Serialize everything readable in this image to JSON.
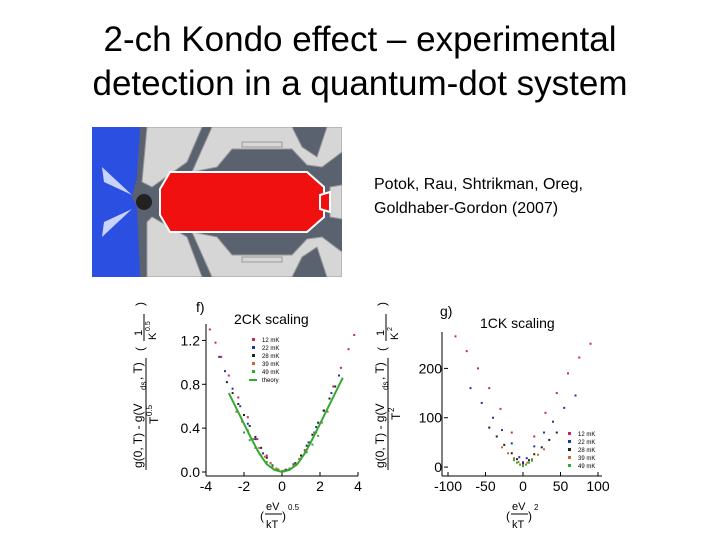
{
  "slide": {
    "title_line1": "2-ch Kondo effect – experimental",
    "title_line2": "detection in a quantum-dot system",
    "citation_line1": "Potok, Rau, Shtrikman, Oreg,",
    "citation_line2": "Goldhaber-Gordon (2007)"
  },
  "colors": {
    "blue_lead": "#2b4fe0",
    "red_island": "#f01010",
    "gate_grey": "#d6d6d6",
    "substrate": "#5a6270"
  },
  "chart_data": [
    {
      "type": "scatter",
      "panel_letter": "f)",
      "title": "2CK scaling",
      "xlabel": "(eV/kT)^0.5",
      "ylabel": "(g(0,T) - g(Vds,T)) / T^0.5  (1/K^0.5)",
      "xlim": [
        -4,
        4
      ],
      "ylim": [
        0,
        1.35
      ],
      "x_ticks": [
        "-4",
        "-2",
        "0",
        "2",
        "4"
      ],
      "y_ticks": [
        "0.0",
        "0.4",
        "0.8",
        "1.2"
      ],
      "legend": [
        "12 mK",
        "22 mK",
        "28 mK",
        "39 mK",
        "49 mK",
        "theory"
      ],
      "legend_position": "top-left",
      "series": [
        {
          "name": "12 mK",
          "color": "#cc2266",
          "x": [
            -3.8,
            -3.5,
            -3.2,
            -2.8,
            -2.3,
            -1.8,
            -1.3,
            -0.8,
            -0.3,
            0.2,
            0.7,
            1.2,
            1.7,
            2.2,
            2.7,
            3.1,
            3.5,
            3.8
          ],
          "y": [
            1.3,
            1.18,
            1.05,
            0.88,
            0.68,
            0.5,
            0.3,
            0.15,
            0.03,
            0.02,
            0.08,
            0.2,
            0.36,
            0.56,
            0.78,
            0.95,
            1.12,
            1.25
          ]
        },
        {
          "name": "22 mK",
          "color": "#2233aa",
          "x": [
            -3.3,
            -3.0,
            -2.6,
            -2.2,
            -1.8,
            -1.4,
            -1.0,
            -0.6,
            -0.2,
            0.2,
            0.6,
            1.0,
            1.4,
            1.8,
            2.2,
            2.6,
            3.0
          ],
          "y": [
            1.05,
            0.92,
            0.76,
            0.6,
            0.44,
            0.3,
            0.17,
            0.08,
            0.02,
            0.02,
            0.07,
            0.15,
            0.27,
            0.41,
            0.56,
            0.72,
            0.88
          ]
        },
        {
          "name": "28 mK",
          "color": "#222222",
          "x": [
            -2.9,
            -2.6,
            -2.3,
            -2.0,
            -1.7,
            -1.4,
            -1.1,
            -0.8,
            -0.5,
            -0.2,
            0.1,
            0.4,
            0.7,
            1.0,
            1.3,
            1.6,
            1.9,
            2.2,
            2.5,
            2.8
          ],
          "y": [
            0.82,
            0.72,
            0.62,
            0.52,
            0.42,
            0.32,
            0.22,
            0.13,
            0.06,
            0.02,
            0.01,
            0.03,
            0.08,
            0.15,
            0.24,
            0.34,
            0.45,
            0.56,
            0.67,
            0.78
          ]
        },
        {
          "name": "39 mK",
          "color": "#cc6633",
          "x": [
            -2.4,
            -2.1,
            -1.8,
            -1.5,
            -1.2,
            -0.9,
            -0.6,
            -0.3,
            0.0,
            0.3,
            0.6,
            0.9,
            1.2,
            1.5,
            1.8,
            2.1,
            2.4
          ],
          "y": [
            0.55,
            0.46,
            0.38,
            0.3,
            0.22,
            0.14,
            0.08,
            0.03,
            0.01,
            0.02,
            0.06,
            0.12,
            0.19,
            0.27,
            0.36,
            0.45,
            0.55
          ]
        },
        {
          "name": "49 mK",
          "color": "#33aa33",
          "x": [
            -2.0,
            -1.7,
            -1.4,
            -1.1,
            -0.8,
            -0.5,
            -0.2,
            0.1,
            0.4,
            0.7,
            1.0,
            1.3,
            1.6,
            1.9
          ],
          "y": [
            0.36,
            0.29,
            0.22,
            0.15,
            0.09,
            0.05,
            0.02,
            0.01,
            0.03,
            0.07,
            0.12,
            0.18,
            0.25,
            0.33
          ]
        },
        {
          "name": "theory",
          "type": "line",
          "color": "#33aa33",
          "x": [
            -2.8,
            -2.4,
            -2.0,
            -1.6,
            -1.2,
            -0.8,
            -0.4,
            0.0,
            0.4,
            0.8,
            1.2,
            1.6,
            2.0,
            2.4,
            2.8,
            3.2
          ],
          "y": [
            0.72,
            0.58,
            0.44,
            0.3,
            0.17,
            0.07,
            0.02,
            0.0,
            0.02,
            0.07,
            0.17,
            0.3,
            0.44,
            0.58,
            0.72,
            0.86
          ]
        }
      ]
    },
    {
      "type": "scatter",
      "panel_letter": "g)",
      "title": "1CK scaling",
      "xlabel": "(eV/kT)^2",
      "ylabel": "(g(0,T) - g(Vds,T)) / T^2  (1/K^2)",
      "xlim": [
        -100,
        100
      ],
      "ylim": [
        -10,
        290
      ],
      "x_ticks": [
        "-100",
        "-50",
        "0",
        "50",
        "100"
      ],
      "y_ticks": [
        "0",
        "100",
        "200"
      ],
      "legend": [
        "12 mK",
        "22 mK",
        "28 mK",
        "39 mK",
        "49 mK"
      ],
      "legend_position": "bottom-right",
      "series": [
        {
          "name": "12 mK",
          "color": "#cc2266",
          "x": [
            -90,
            -75,
            -60,
            -45,
            -30,
            -15,
            0,
            15,
            30,
            45,
            60,
            75,
            90
          ],
          "y": [
            265,
            235,
            200,
            160,
            118,
            70,
            10,
            62,
            110,
            150,
            190,
            222,
            250
          ]
        },
        {
          "name": "22 mK",
          "color": "#2233aa",
          "x": [
            -70,
            -55,
            -40,
            -28,
            -15,
            -5,
            0,
            5,
            15,
            28,
            40,
            55,
            70
          ],
          "y": [
            160,
            130,
            100,
            75,
            48,
            20,
            8,
            18,
            42,
            70,
            92,
            120,
            145
          ]
        },
        {
          "name": "28 mK",
          "color": "#222222",
          "x": [
            -45,
            -35,
            -25,
            -15,
            -8,
            0,
            8,
            15,
            25,
            35,
            45
          ],
          "y": [
            80,
            62,
            45,
            28,
            16,
            5,
            14,
            26,
            40,
            55,
            70
          ]
        },
        {
          "name": "39 mK",
          "color": "#cc6633",
          "x": [
            -28,
            -20,
            -12,
            -6,
            0,
            6,
            12,
            20,
            28
          ],
          "y": [
            40,
            28,
            18,
            10,
            4,
            9,
            16,
            25,
            36
          ]
        },
        {
          "name": "49 mK",
          "color": "#33aa33",
          "x": [
            -12,
            -8,
            -4,
            0,
            4,
            8,
            12
          ],
          "y": [
            14,
            9,
            5,
            2,
            5,
            9,
            13
          ]
        }
      ]
    }
  ]
}
